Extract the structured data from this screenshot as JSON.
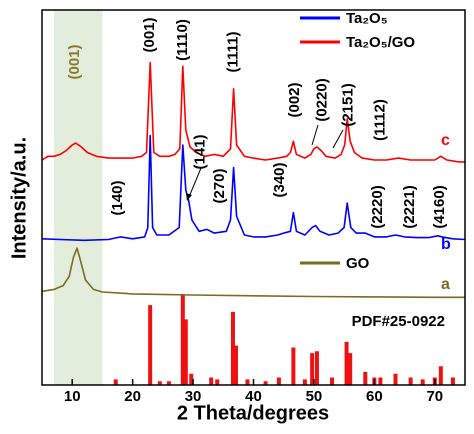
{
  "chart_data": {
    "type": "line",
    "x_label": "2 Theta/degrees",
    "y_label": "Intensity/a.u.",
    "xlim": [
      5,
      75
    ],
    "xticks": [
      10,
      20,
      30,
      40,
      50,
      60,
      70
    ],
    "ylim": [
      0,
      100
    ],
    "highlight_range": [
      7,
      15
    ],
    "highlight_color": "#e2eedb",
    "series": [
      {
        "name": "Ta₂O₅/GO",
        "label": "c",
        "color": "#ff0000",
        "x": [
          5,
          6,
          7,
          8,
          9,
          10,
          10.6,
          11.5,
          12.5,
          14,
          16,
          18,
          20,
          21.5,
          22.3,
          22.9,
          23.5,
          24.5,
          26,
          27,
          27.8,
          28.3,
          28.8,
          29.5,
          30.5,
          32,
          33.5,
          35,
          36.2,
          36.7,
          37.2,
          38.5,
          40,
          42,
          44,
          45.5,
          46.1,
          46.6,
          47.1,
          48.5,
          49.5,
          50,
          50.5,
          51.2,
          52,
          53.5,
          54.5,
          55.1,
          55.5,
          56,
          56.7,
          58,
          60,
          62,
          64,
          66,
          68,
          70,
          71,
          72,
          74,
          75
        ],
        "values": [
          60,
          61,
          61,
          61.5,
          62.5,
          64,
          64.5,
          63.5,
          62,
          61,
          60.5,
          60.5,
          60.5,
          61,
          62,
          86,
          62,
          61,
          61,
          61.5,
          63,
          85,
          68,
          63.5,
          62,
          61,
          61.5,
          61,
          63,
          79,
          64,
          61,
          60.5,
          60,
          60.5,
          61,
          62,
          65,
          61.5,
          60.5,
          61.5,
          63,
          63.5,
          62.5,
          61,
          60.5,
          61.5,
          64,
          71,
          65,
          62,
          60.5,
          60,
          60,
          60.5,
          60,
          60,
          60,
          61,
          60,
          59.5,
          59.5
        ]
      },
      {
        "name": "Ta₂O₅",
        "label": "b",
        "color": "#0000ff",
        "x": [
          5,
          8,
          12,
          16,
          18,
          20,
          22,
          22.5,
          22.9,
          23.3,
          24,
          26,
          27.7,
          28.3,
          28.8,
          29.3,
          29.8,
          31,
          32.3,
          33.5,
          35.5,
          36.2,
          36.7,
          37.2,
          38.5,
          40,
          42,
          44,
          45,
          46.1,
          46.6,
          47.1,
          48.5,
          49.7,
          50.3,
          51,
          52.5,
          54,
          55,
          55.5,
          56.1,
          57,
          58.5,
          60,
          62,
          63.5,
          65,
          67,
          69,
          70.5,
          71.2,
          73,
          75
        ],
        "values": [
          39,
          38.8,
          38.6,
          38.8,
          39.5,
          39,
          39.5,
          42,
          66.5,
          42,
          40,
          40,
          42,
          64,
          52,
          49,
          44,
          41,
          41.5,
          40.5,
          41,
          44,
          58,
          45,
          40,
          39.5,
          39.5,
          40,
          40.5,
          41,
          46,
          41,
          40,
          42,
          42.5,
          41,
          40,
          40.5,
          42,
          48.5,
          42,
          40.5,
          40.5,
          39.5,
          39.5,
          40,
          39.5,
          39.3,
          39.3,
          39.8,
          39.5,
          39,
          38.8
        ]
      },
      {
        "name": "GO",
        "label": "a",
        "color": "#7d6b22",
        "x": [
          5,
          7,
          8.5,
          9.5,
          10.2,
          10.8,
          11.4,
          12.2,
          13.5,
          15,
          20,
          30,
          40,
          50,
          60,
          70,
          75
        ],
        "values": [
          25,
          25.5,
          26.5,
          29,
          34,
          36.5,
          33,
          28,
          25.5,
          24.8,
          24.3,
          24,
          23.8,
          23.6,
          23.5,
          23.4,
          23.4
        ]
      }
    ],
    "reference": {
      "name": "PDF#25-0922",
      "color": "#ee1111",
      "x": [
        17.2,
        22.9,
        24.5,
        26,
        28.3,
        28.8,
        29.7,
        33,
        34,
        36.6,
        37.1,
        39,
        42,
        44.2,
        46.6,
        48.5,
        49.7,
        50.5,
        53,
        55.4,
        56,
        58.5,
        60,
        61,
        63.5,
        66,
        68,
        70,
        71,
        73
      ],
      "values": [
        1.5,
        21.3,
        1,
        1,
        24,
        17.5,
        3,
        2,
        1.5,
        19.5,
        10.5,
        1.5,
        1,
        2,
        10,
        1.5,
        8.5,
        9,
        2,
        11.5,
        8.5,
        3.5,
        2,
        2,
        3,
        2,
        1.5,
        2,
        5,
        2
      ]
    },
    "annotations": [
      {
        "text": "(001)",
        "x": 22.9,
        "color": "#000000"
      },
      {
        "text": "(1110)",
        "x": 28.3,
        "color": "#000000"
      },
      {
        "text": "(1111)",
        "x": 36.7,
        "color": "#000000"
      },
      {
        "text": "(002)",
        "x": 46.9,
        "color": "#000000"
      },
      {
        "text": "(0220)",
        "x": 51.4,
        "color": "#000000"
      },
      {
        "text": "(2151)",
        "x": 55.7,
        "color": "#000000"
      },
      {
        "text": "(1112)",
        "x": 61,
        "color": "#000000"
      },
      {
        "text": "(140)",
        "x": 17.6,
        "color": "#000000"
      },
      {
        "text": "(141)",
        "x": 31.2,
        "color": "#000000"
      },
      {
        "text": "(270)",
        "x": 34.5,
        "color": "#000000"
      },
      {
        "text": "(340)",
        "x": 44.4,
        "color": "#000000"
      },
      {
        "text": "(2220)",
        "x": 60.6,
        "color": "#000000"
      },
      {
        "text": "(2221)",
        "x": 65.9,
        "color": "#000000"
      },
      {
        "text": "(4160)",
        "x": 70.9,
        "color": "#000000"
      },
      {
        "text": "(001)",
        "x": 10.5,
        "color": "#8a7a30"
      }
    ]
  }
}
